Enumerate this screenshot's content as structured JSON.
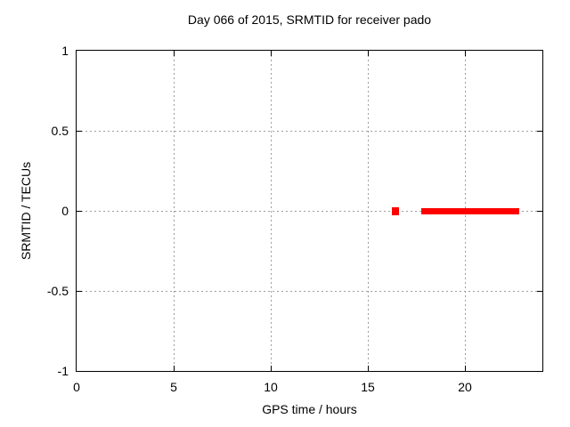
{
  "title": "Day 066 of 2015, SRMTID for receiver pado",
  "xlabel": "GPS time / hours",
  "ylabel": "SRMTID / TECUs",
  "colors": {
    "data": "#ff0000",
    "grid": "#9e9e9e",
    "axis": "#000000",
    "background": "#ffffff",
    "text": "#000000"
  },
  "chart_data": {
    "type": "scatter",
    "title": "Day 066 of 2015, SRMTID for receiver pado",
    "xlabel": "GPS time / hours",
    "ylabel": "SRMTID / TECUs",
    "xlim": [
      0,
      24
    ],
    "ylim": [
      -1,
      1
    ],
    "xticks": [
      0,
      5,
      10,
      15,
      20
    ],
    "xtick_labels": [
      "0",
      "5",
      "10",
      "15",
      "20"
    ],
    "yticks": [
      1,
      0.5,
      0,
      -0.5,
      -1
    ],
    "ytick_labels": [
      "1",
      "0.5",
      "0",
      "-0.5",
      "-1"
    ],
    "grid": true,
    "legend_position": "none",
    "series": [
      {
        "name": "SRMTID",
        "color": "#ff0000",
        "marker": "filled-square",
        "y_value": 0,
        "segments": [
          {
            "x_start": 16.25,
            "x_end": 16.6,
            "style": "point"
          },
          {
            "x_start": 17.75,
            "x_end": 22.8,
            "style": "band"
          }
        ]
      }
    ]
  }
}
